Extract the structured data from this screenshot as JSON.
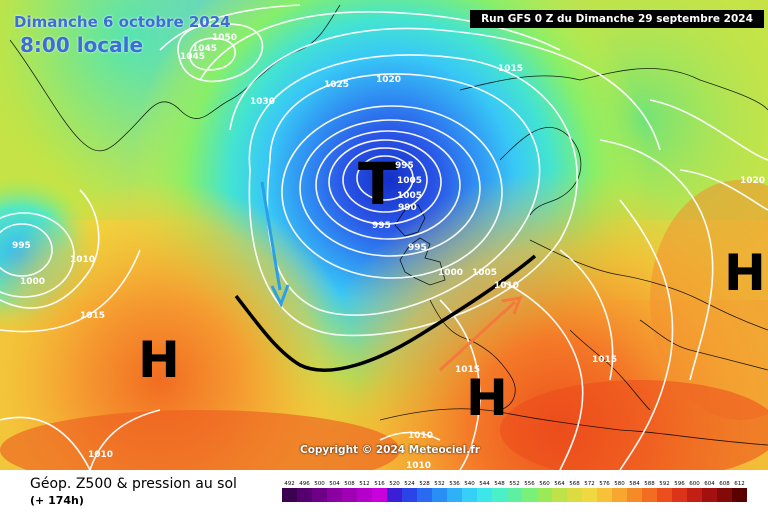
{
  "header": {
    "date": "Dimanche 6 octobre 2024",
    "time": "8:00 locale",
    "run": "Run GFS 0 Z du Dimanche 29 septembre 2024",
    "copyright": "Copyright © 2024 Meteociel.fr"
  },
  "legend": {
    "title": "Géop. Z500 & pression au sol",
    "subtitle": "(+ 174h)",
    "scale_values": [
      "492",
      "496",
      "500",
      "504",
      "508",
      "512",
      "516",
      "520",
      "524",
      "528",
      "532",
      "536",
      "540",
      "544",
      "548",
      "552",
      "556",
      "560",
      "564",
      "568",
      "572",
      "576",
      "580",
      "584",
      "588",
      "592",
      "596",
      "600",
      "604",
      "608",
      "612"
    ],
    "scale_colors": [
      "#3c0050",
      "#55006e",
      "#6e0088",
      "#8a00a0",
      "#a000b4",
      "#b400c8",
      "#c800dc",
      "#3b1fd6",
      "#2b44e8",
      "#2a6af0",
      "#2a8ff5",
      "#2fb0f7",
      "#35cff8",
      "#3de6ea",
      "#4bf0c8",
      "#5ef0a0",
      "#78f07a",
      "#9aea58",
      "#bde24a",
      "#dcdc40",
      "#f0d840",
      "#f7c238",
      "#f7a630",
      "#f58a28",
      "#f26c22",
      "#ec4f1c",
      "#dc3418",
      "#c22014",
      "#a31010",
      "#820a0a",
      "#5a0000"
    ]
  },
  "pressure_systems": [
    {
      "label": "T"
    },
    {
      "label": "H"
    },
    {
      "label": "H"
    },
    {
      "label": "H"
    }
  ],
  "isobar_labels": [
    "1050",
    "1045",
    "1045",
    "1030",
    "1025",
    "1020",
    "1015",
    "995",
    "1000",
    "1010",
    "1015",
    "995",
    "995",
    "1000",
    "1005",
    "1010",
    "1015",
    "1015",
    "1020",
    "1010",
    "1010",
    "1010",
    "990",
    "995",
    "1005",
    "1005"
  ],
  "colors": {
    "low_center": "#1c2fd6",
    "front": "#000000",
    "arrow_blue": "#2aa0e8",
    "arrow_orange": "#f5793a"
  }
}
